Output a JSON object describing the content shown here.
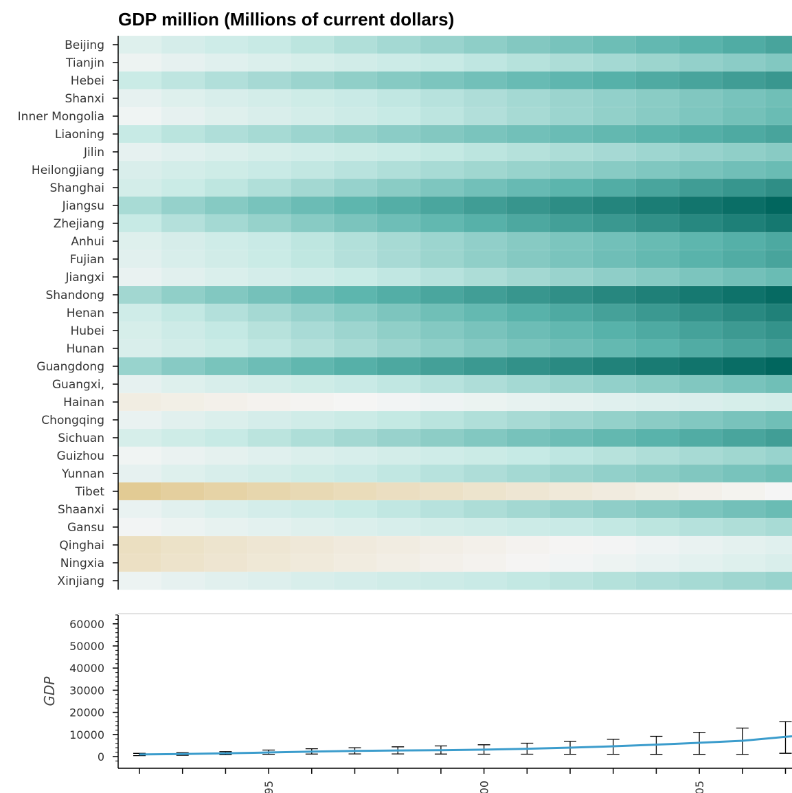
{
  "chart_data": [
    {
      "type": "heatmap",
      "title": "GDP million (Millions of current dollars)",
      "rows": [
        "Beijing",
        "Tianjin",
        "Hebei",
        "Shanxi",
        "Inner Mongolia",
        "Liaoning",
        "Jilin",
        "Heilongjiang",
        "Shanghai",
        "Jiangsu",
        "Zhejiang",
        "Anhui",
        "Fujian",
        "Jiangxi",
        "Shandong",
        "Henan",
        "Hubei",
        "Hunan",
        "Guangdong",
        "Guangxi,",
        "Hainan",
        "Chongqing",
        "Sichuan",
        "Guizhou",
        "Yunnan",
        "Tibet",
        "Shaanxi",
        "Gansu",
        "Qinghai",
        "Ningxia",
        "Xinjiang"
      ],
      "years": [
        1992,
        1993,
        1994,
        1995,
        1996,
        1997,
        1998,
        1999,
        2000,
        2001,
        2002,
        2003,
        2004,
        2005,
        2006,
        2007
      ],
      "colors": {
        "low": "#dcbd74",
        "mid": "#f5f5f5",
        "high": "#01665e"
      },
      "shade_level_start": [
        0.15,
        0.05,
        0.28,
        0.1,
        0.04,
        0.3,
        0.1,
        0.18,
        0.22,
        0.4,
        0.3,
        0.15,
        0.13,
        0.08,
        0.42,
        0.25,
        0.2,
        0.18,
        0.45,
        0.1,
        -0.15,
        0.08,
        0.2,
        0.03,
        0.1,
        -0.75,
        0.08,
        0.02,
        -0.4,
        -0.38,
        0.06
      ],
      "shade_level_end": [
        0.72,
        0.52,
        0.78,
        0.58,
        0.6,
        0.72,
        0.5,
        0.6,
        0.82,
        1.0,
        0.92,
        0.7,
        0.72,
        0.6,
        0.98,
        0.88,
        0.8,
        0.75,
        1.0,
        0.58,
        0.22,
        0.58,
        0.75,
        0.45,
        0.58,
        0.0,
        0.6,
        0.4,
        0.14,
        0.18,
        0.45
      ]
    },
    {
      "type": "line",
      "ylabel": "GDP",
      "yticks": [
        0,
        10000,
        20000,
        30000,
        40000,
        50000,
        60000
      ],
      "ylim": [
        -2000,
        64000
      ],
      "xtick_labels": [
        "95",
        "00",
        "05"
      ],
      "x": [
        1992,
        1993,
        1994,
        1995,
        1996,
        1997,
        1998,
        1999,
        2000,
        2001,
        2002,
        2003,
        2004,
        2005,
        2006,
        2007
      ],
      "y": [
        950,
        1150,
        1450,
        1850,
        2250,
        2550,
        2750,
        2900,
        3150,
        3550,
        4050,
        4650,
        5400,
        6250,
        7150,
        8900
      ],
      "err_low": [
        450,
        600,
        800,
        1050,
        1150,
        1200,
        1200,
        1150,
        1100,
        1100,
        1050,
        1050,
        1000,
        1000,
        950,
        1500
      ],
      "err_high": [
        1450,
        1750,
        2250,
        2950,
        3550,
        4000,
        4400,
        4800,
        5350,
        6050,
        6850,
        7800,
        9150,
        11000,
        12900,
        15800
      ],
      "color": "#3b9ccc"
    }
  ]
}
